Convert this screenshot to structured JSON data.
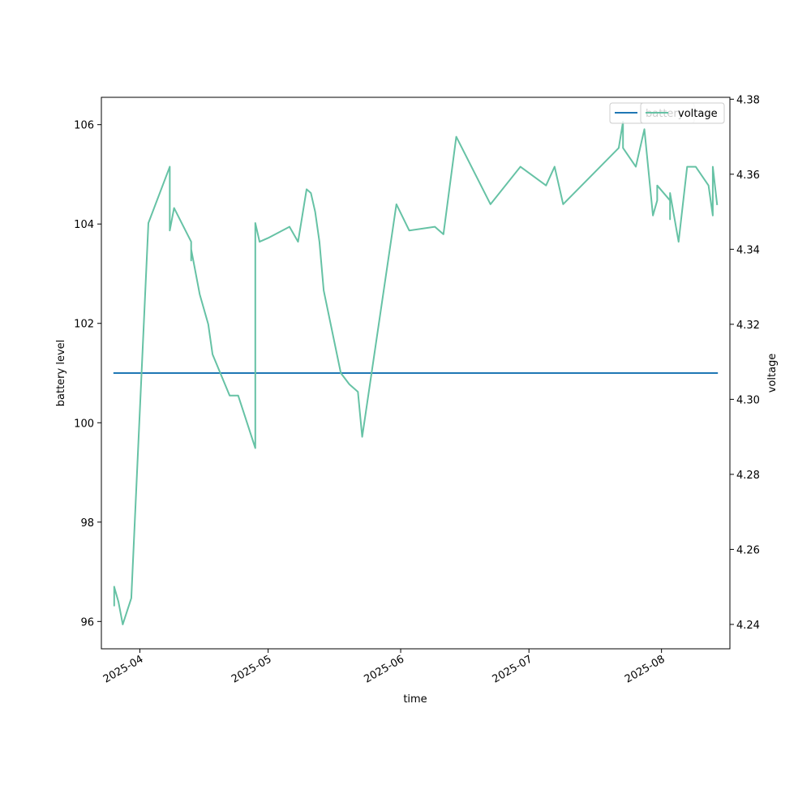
{
  "chart_data": {
    "type": "line",
    "xlabel": "time",
    "ylabel": "battery level",
    "y2label": "voltage",
    "x_ticks": [
      "2025-04-01",
      "2025-05-01",
      "2025-06-01",
      "2025-07-01",
      "2025-08-01"
    ],
    "x_tick_labels": [
      "2025-04",
      "2025-05",
      "2025-06",
      "2025-07",
      "2025-08"
    ],
    "xlim": [
      "2025-03-23",
      "2025-08-17"
    ],
    "ylim": [
      95.45,
      106.55
    ],
    "y_ticks": [
      96,
      98,
      100,
      102,
      104,
      106
    ],
    "y2lim": [
      4.2335,
      4.3805
    ],
    "y2_ticks": [
      4.24,
      4.26,
      4.28,
      4.3,
      4.32,
      4.34,
      4.36,
      4.38
    ],
    "y2_tick_labels": [
      "4.24",
      "4.26",
      "4.28",
      "4.30",
      "4.32",
      "4.34",
      "4.36",
      "4.38"
    ],
    "legend_position": "top-right",
    "series": [
      {
        "name": "battery",
        "axis": "left",
        "color": "#1f77b4",
        "points": [
          [
            "2025-03-26",
            101
          ],
          [
            "2025-08-14",
            101
          ]
        ]
      },
      {
        "name": "voltage",
        "axis": "right",
        "color": "#66c2a5",
        "points": [
          [
            "2025-03-26",
            4.25
          ],
          [
            "2025-03-26",
            4.245
          ],
          [
            "2025-03-26",
            4.25
          ],
          [
            "2025-03-27",
            4.246
          ],
          [
            "2025-03-28",
            4.24
          ],
          [
            "2025-03-30",
            4.247
          ],
          [
            "2025-04-03",
            4.347
          ],
          [
            "2025-04-08",
            4.362
          ],
          [
            "2025-04-08",
            4.345
          ],
          [
            "2025-04-09",
            4.351
          ],
          [
            "2025-04-13",
            4.342
          ],
          [
            "2025-04-13",
            4.337
          ],
          [
            "2025-04-13",
            4.34
          ],
          [
            "2025-04-15",
            4.328
          ],
          [
            "2025-04-17",
            4.32
          ],
          [
            "2025-04-18",
            4.312
          ],
          [
            "2025-04-22",
            4.301
          ],
          [
            "2025-04-24",
            4.301
          ],
          [
            "2025-04-28",
            4.287
          ],
          [
            "2025-04-28",
            4.347
          ],
          [
            "2025-04-29",
            4.342
          ],
          [
            "2025-05-01",
            4.343
          ],
          [
            "2025-05-06",
            4.346
          ],
          [
            "2025-05-08",
            4.342
          ],
          [
            "2025-05-10",
            4.356
          ],
          [
            "2025-05-11",
            4.355
          ],
          [
            "2025-05-12",
            4.35
          ],
          [
            "2025-05-13",
            4.342
          ],
          [
            "2025-05-14",
            4.329
          ],
          [
            "2025-05-18",
            4.307
          ],
          [
            "2025-05-20",
            4.304
          ],
          [
            "2025-05-22",
            4.302
          ],
          [
            "2025-05-23",
            4.29
          ],
          [
            "2025-05-31",
            4.352
          ],
          [
            "2025-06-03",
            4.345
          ],
          [
            "2025-06-09",
            4.346
          ],
          [
            "2025-06-10",
            4.345
          ],
          [
            "2025-06-11",
            4.344
          ],
          [
            "2025-06-14",
            4.37
          ],
          [
            "2025-06-22",
            4.352
          ],
          [
            "2025-06-29",
            4.362
          ],
          [
            "2025-07-05",
            4.357
          ],
          [
            "2025-07-07",
            4.362
          ],
          [
            "2025-07-09",
            4.352
          ],
          [
            "2025-07-22",
            4.367
          ],
          [
            "2025-07-23",
            4.374
          ],
          [
            "2025-07-23",
            4.367
          ],
          [
            "2025-07-26",
            4.362
          ],
          [
            "2025-07-28",
            4.372
          ],
          [
            "2025-07-30",
            4.349
          ],
          [
            "2025-07-31",
            4.353
          ],
          [
            "2025-07-31",
            4.357
          ],
          [
            "2025-08-03",
            4.353
          ],
          [
            "2025-08-03",
            4.348
          ],
          [
            "2025-08-03",
            4.355
          ],
          [
            "2025-08-05",
            4.342
          ],
          [
            "2025-08-07",
            4.362
          ],
          [
            "2025-08-09",
            4.362
          ],
          [
            "2025-08-12",
            4.357
          ],
          [
            "2025-08-13",
            4.349
          ],
          [
            "2025-08-13",
            4.362
          ],
          [
            "2025-08-14",
            4.352
          ]
        ]
      }
    ]
  }
}
